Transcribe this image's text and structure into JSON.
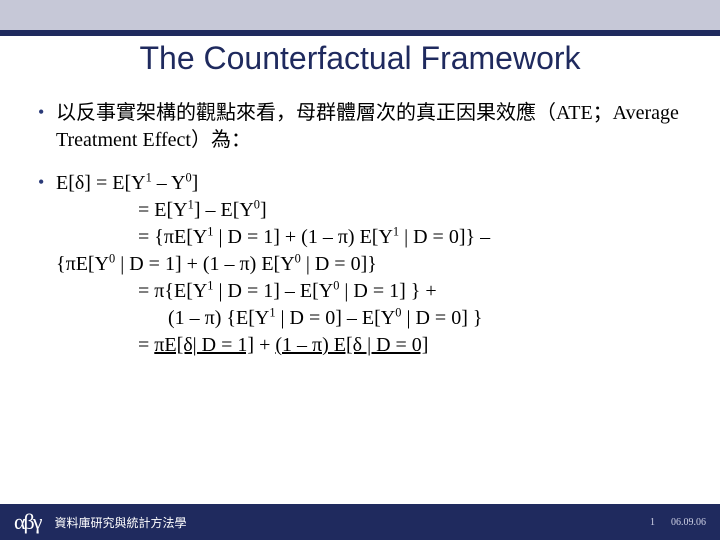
{
  "colors": {
    "topbar_light": "#c6c8d7",
    "accent": "#1f2a5e",
    "title_color": "#1f2a5e",
    "text_color": "#000000",
    "footer_bg": "#1f2a5e",
    "footer_text": "#ffffff",
    "background": "#ffffff"
  },
  "title": "The Counterfactual Framework",
  "bullet1": "以反事實架構的觀點來看，母群體層次的真正因果效應（ATE；Average Treatment Effect）為：",
  "eq": {
    "l0": "E[δ] = E[Y¹ – Y⁰]",
    "l1": "= E[Y¹] – E[Y⁰]",
    "l2": "= {πE[Y¹ | D = 1] + (1 – π) E[Y¹ | D = 0]} –",
    "l3": "{πE[Y⁰ | D = 1] + (1 – π) E[Y⁰ | D = 0]}",
    "l4": "= π{E[Y¹ | D = 1] – E[Y⁰ | D = 1] } +",
    "l5": "(1 – π) {E[Y¹ | D = 0] – E[Y⁰ | D = 0] }",
    "l6a": "= ",
    "l6b": "πE[δ| D = 1]",
    "l6c": " + ",
    "l6d": "(1 – π) E[δ | D = 0]"
  },
  "footer": {
    "logo": "αβγ",
    "text": "資料庫研究與統計方法學",
    "page": "1",
    "date": "06.09.06"
  }
}
